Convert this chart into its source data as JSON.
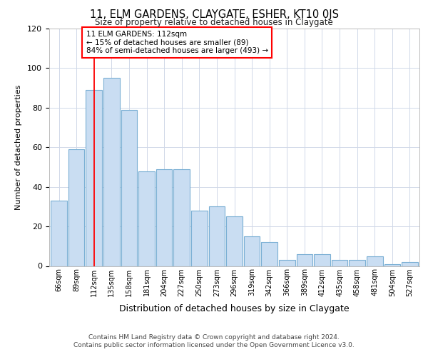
{
  "title": "11, ELM GARDENS, CLAYGATE, ESHER, KT10 0JS",
  "subtitle": "Size of property relative to detached houses in Claygate",
  "xlabel": "Distribution of detached houses by size in Claygate",
  "ylabel": "Number of detached properties",
  "categories": [
    "66sqm",
    "89sqm",
    "112sqm",
    "135sqm",
    "158sqm",
    "181sqm",
    "204sqm",
    "227sqm",
    "250sqm",
    "273sqm",
    "296sqm",
    "319sqm",
    "342sqm",
    "366sqm",
    "389sqm",
    "412sqm",
    "435sqm",
    "458sqm",
    "481sqm",
    "504sqm",
    "527sqm"
  ],
  "bar_heights": [
    33,
    59,
    89,
    95,
    79,
    48,
    49,
    49,
    28,
    30,
    25,
    15,
    12,
    3,
    6,
    6,
    3,
    3,
    5,
    1,
    2
  ],
  "bar_color": "#c9ddf2",
  "bar_edge_color": "#7aafd4",
  "red_line_index": 2,
  "annotation_text": "11 ELM GARDENS: 112sqm\n← 15% of detached houses are smaller (89)\n84% of semi-detached houses are larger (493) →",
  "ylim": [
    0,
    120
  ],
  "yticks": [
    0,
    20,
    40,
    60,
    80,
    100,
    120
  ],
  "footer1": "Contains HM Land Registry data © Crown copyright and database right 2024.",
  "footer2": "Contains public sector information licensed under the Open Government Licence v3.0.",
  "bg_color": "#ffffff",
  "grid_color": "#d0d8e8"
}
